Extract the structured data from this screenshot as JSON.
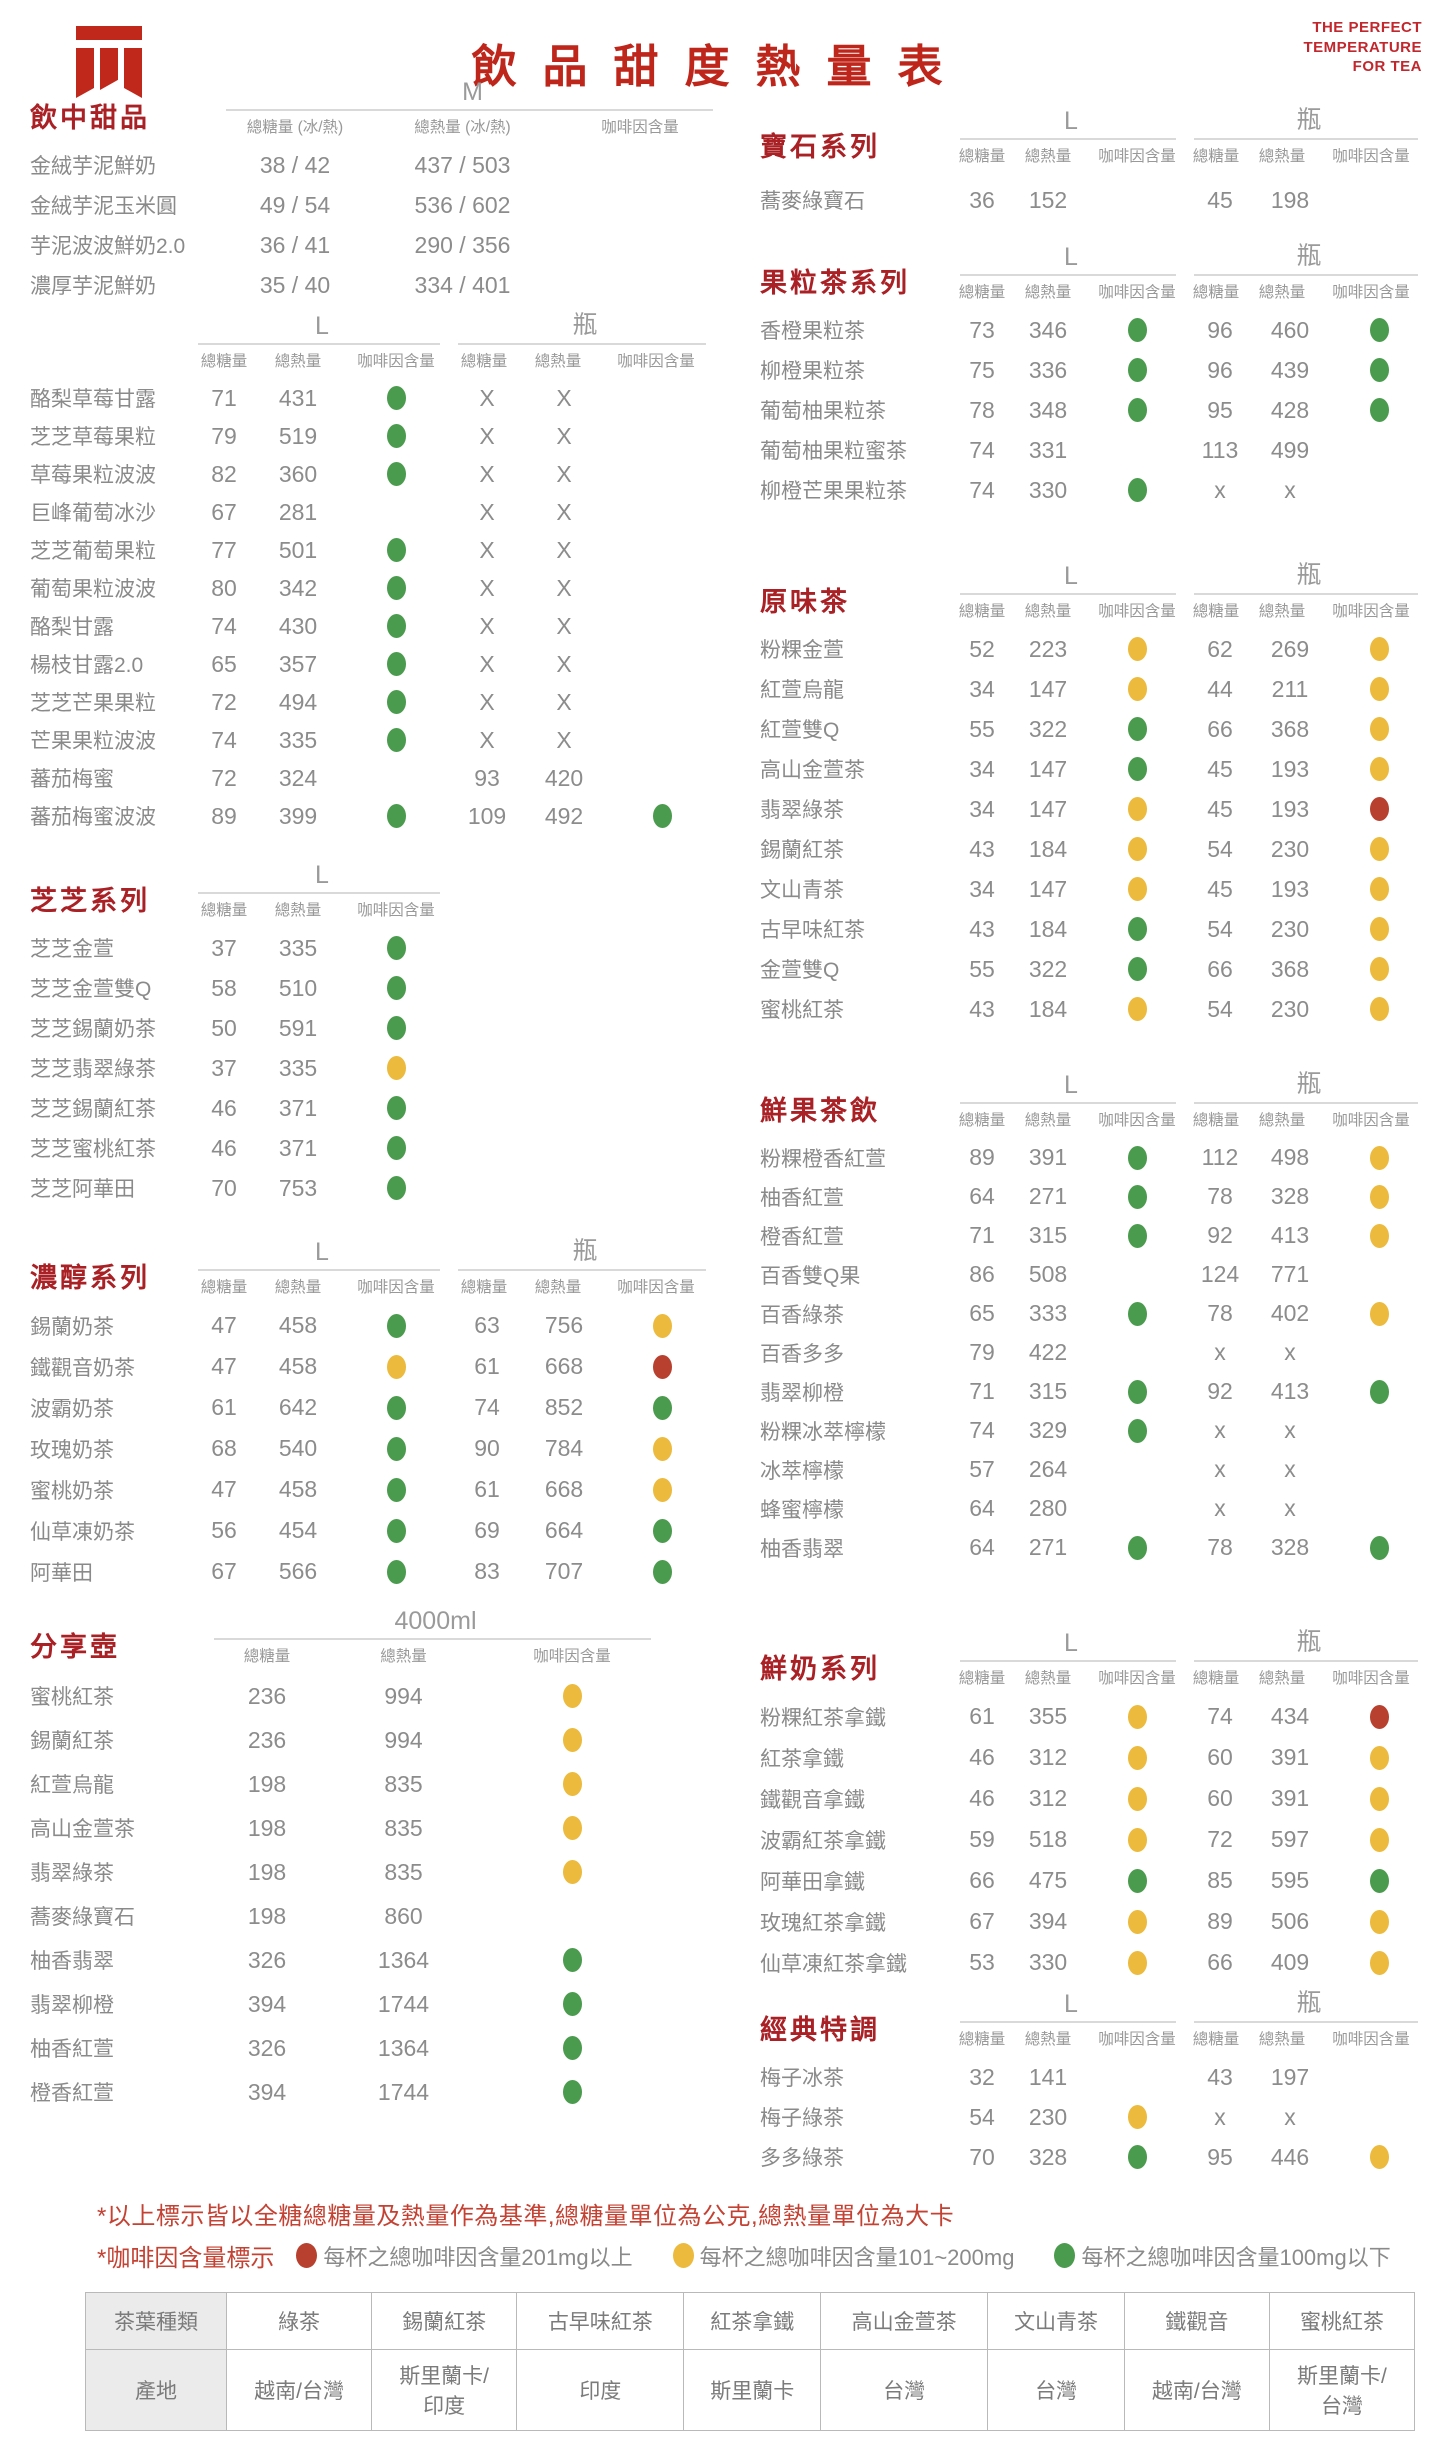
{
  "header": {
    "title": "飲品甜度熱量表",
    "tagline": [
      "THE PERFECT",
      "TEMPERATURE",
      "FOR TEA"
    ]
  },
  "colors": {
    "accent_red": "#bf261b",
    "section_red": "#a92025",
    "dot_green": "#4b9b4e",
    "dot_yellow": "#ecba3c",
    "dot_red": "#b8402e"
  },
  "column_headers": {
    "default": [
      "總糖量",
      "總熱量",
      "咖啡因含量"
    ],
    "ice_hot": [
      "總糖量 (冰/熱)",
      "總熱量 (冰/熱)",
      "咖啡因含量"
    ]
  },
  "left_sections": [
    {
      "id": "drink-desserts",
      "title": "飲中甜品",
      "type": "sec-m",
      "extra": "mt8",
      "groups": [
        "M"
      ],
      "headers": "ice_hot",
      "rows": [
        [
          "金絨芋泥鮮奶",
          "38 / 42",
          "437 / 503",
          ""
        ],
        [
          "金絨芋泥玉米圓",
          "49 / 54",
          "536 / 602",
          ""
        ],
        [
          "芋泥波波鮮奶2.0",
          "36 / 41",
          "290 / 356",
          ""
        ],
        [
          "濃厚芋泥鮮奶",
          "35 / 40",
          "334 / 401",
          ""
        ]
      ]
    },
    {
      "id": "fruit-specials",
      "title": "",
      "type": "sec-lbL fruity",
      "extra": "mt0",
      "groups": [
        "L",
        "瓶"
      ],
      "rows": [
        [
          "酪梨草莓甘露",
          "71",
          "431",
          "g",
          "X",
          "X",
          ""
        ],
        [
          "芝芝草莓果粒",
          "79",
          "519",
          "g",
          "X",
          "X",
          ""
        ],
        [
          "草莓果粒波波",
          "82",
          "360",
          "g",
          "X",
          "X",
          ""
        ],
        [
          "巨峰葡萄冰沙",
          "67",
          "281",
          "",
          "X",
          "X",
          ""
        ],
        [
          "芝芝葡萄果粒",
          "77",
          "501",
          "g",
          "X",
          "X",
          ""
        ],
        [
          "葡萄果粒波波",
          "80",
          "342",
          "g",
          "X",
          "X",
          ""
        ],
        [
          "酪梨甘露",
          "74",
          "430",
          "g",
          "X",
          "X",
          ""
        ],
        [
          "楊枝甘露2.0",
          "65",
          "357",
          "g",
          "X",
          "X",
          ""
        ],
        [
          "芝芝芒果果粒",
          "72",
          "494",
          "g",
          "X",
          "X",
          ""
        ],
        [
          "芒果果粒波波",
          "74",
          "335",
          "g",
          "X",
          "X",
          ""
        ],
        [
          "蕃茄梅蜜",
          "72",
          "324",
          "",
          "93",
          "420",
          ""
        ],
        [
          "蕃茄梅蜜波波",
          "89",
          "399",
          "g",
          "109",
          "492",
          "g"
        ]
      ]
    },
    {
      "id": "cheese-series",
      "title": "芝芝系列",
      "type": "sec-l",
      "extra": "mt26",
      "groups": [
        "L"
      ],
      "rows": [
        [
          "芝芝金萱",
          "37",
          "335",
          "g"
        ],
        [
          "芝芝金萱雙Q",
          "58",
          "510",
          "g"
        ],
        [
          "芝芝錫蘭奶茶",
          "50",
          "591",
          "g"
        ],
        [
          "芝芝翡翠綠茶",
          "37",
          "335",
          "y"
        ],
        [
          "芝芝錫蘭紅茶",
          "46",
          "371",
          "g"
        ],
        [
          "芝芝蜜桃紅茶",
          "46",
          "371",
          "g"
        ],
        [
          "芝芝阿華田",
          "70",
          "753",
          "g"
        ]
      ]
    },
    {
      "id": "rich-milk-tea",
      "title": "濃醇系列",
      "type": "sec-lbL rich",
      "extra": "mt23",
      "groups": [
        "L",
        "瓶"
      ],
      "rows": [
        [
          "錫蘭奶茶",
          "47",
          "458",
          "g",
          "63",
          "756",
          "y"
        ],
        [
          "鐵觀音奶茶",
          "47",
          "458",
          "y",
          "61",
          "668",
          "r"
        ],
        [
          "波霸奶茶",
          "61",
          "642",
          "g",
          "74",
          "852",
          "g"
        ],
        [
          "玫瑰奶茶",
          "68",
          "540",
          "g",
          "90",
          "784",
          "y"
        ],
        [
          "蜜桃奶茶",
          "47",
          "458",
          "g",
          "61",
          "668",
          "y"
        ],
        [
          "仙草凍奶茶",
          "56",
          "454",
          "g",
          "69",
          "664",
          "g"
        ],
        [
          "阿華田",
          "67",
          "566",
          "g",
          "83",
          "707",
          "g"
        ]
      ]
    },
    {
      "id": "sharing-jug",
      "title": "分享壺",
      "type": "sec-jug",
      "extra": "mt15",
      "groups": [
        "4000ml"
      ],
      "rows": [
        [
          "蜜桃紅茶",
          "236",
          "994",
          "y"
        ],
        [
          "錫蘭紅茶",
          "236",
          "994",
          "y"
        ],
        [
          "紅萱烏龍",
          "198",
          "835",
          "y"
        ],
        [
          "高山金萱茶",
          "198",
          "835",
          "y"
        ],
        [
          "翡翠綠茶",
          "198",
          "835",
          "y"
        ],
        [
          "蕎麥綠寶石",
          "198",
          "860",
          ""
        ],
        [
          "柚香翡翠",
          "326",
          "1364",
          "g"
        ],
        [
          "翡翠柳橙",
          "394",
          "1744",
          "g"
        ],
        [
          "柚香紅萱",
          "326",
          "1364",
          "g"
        ],
        [
          "橙香紅萱",
          "394",
          "1744",
          "g"
        ]
      ]
    }
  ],
  "right_sections": [
    {
      "id": "gem-series",
      "title": "寶石系列",
      "type": "sec-lbR single",
      "extra": "mt40",
      "groups": [
        "L",
        "瓶"
      ],
      "rows": [
        [
          "蕎麥綠寶石",
          "36",
          "152",
          "",
          "45",
          "198",
          ""
        ]
      ]
    },
    {
      "id": "fruit-tea-series",
      "title": "果粒茶系列",
      "type": "sec-lbR",
      "extra": "mt10",
      "groups": [
        "L",
        "瓶"
      ],
      "rows": [
        [
          "香橙果粒茶",
          "73",
          "346",
          "g",
          "96",
          "460",
          "g"
        ],
        [
          "柳橙果粒茶",
          "75",
          "336",
          "g",
          "96",
          "439",
          "g"
        ],
        [
          "葡萄柚果粒茶",
          "78",
          "348",
          "g",
          "95",
          "428",
          "g"
        ],
        [
          "葡萄柚果粒蜜茶",
          "74",
          "331",
          "",
          "113",
          "499",
          ""
        ],
        [
          "柳橙芒果果粒茶",
          "74",
          "330",
          "g",
          "x",
          "x",
          ""
        ]
      ]
    },
    {
      "id": "original-tea",
      "title": "原味茶",
      "type": "sec-lbR",
      "extra": "mt45",
      "groups": [
        "L",
        "瓶"
      ],
      "rows": [
        [
          "粉粿金萱",
          "52",
          "223",
          "y",
          "62",
          "269",
          "y"
        ],
        [
          "紅萱烏龍",
          "34",
          "147",
          "y",
          "44",
          "211",
          "y"
        ],
        [
          "紅萱雙Q",
          "55",
          "322",
          "g",
          "66",
          "368",
          "y"
        ],
        [
          "高山金萱茶",
          "34",
          "147",
          "g",
          "45",
          "193",
          "y"
        ],
        [
          "翡翠綠茶",
          "34",
          "147",
          "y",
          "45",
          "193",
          "r"
        ],
        [
          "錫蘭紅茶",
          "43",
          "184",
          "y",
          "54",
          "230",
          "y"
        ],
        [
          "文山青茶",
          "34",
          "147",
          "y",
          "45",
          "193",
          "y"
        ],
        [
          "古早味紅茶",
          "43",
          "184",
          "g",
          "54",
          "230",
          "y"
        ],
        [
          "金萱雙Q",
          "55",
          "322",
          "g",
          "66",
          "368",
          "y"
        ],
        [
          "蜜桃紅茶",
          "43",
          "184",
          "y",
          "54",
          "230",
          "y"
        ]
      ]
    },
    {
      "id": "fresh-fruit-tea",
      "title": "鮮果茶飲",
      "type": "sec-lbR fresh",
      "extra": "mt35",
      "groups": [
        "L",
        "瓶"
      ],
      "rows": [
        [
          "粉粿橙香紅萱",
          "89",
          "391",
          "g",
          "112",
          "498",
          "y"
        ],
        [
          "柚香紅萱",
          "64",
          "271",
          "g",
          "78",
          "328",
          "y"
        ],
        [
          "橙香紅萱",
          "71",
          "315",
          "g",
          "92",
          "413",
          "y"
        ],
        [
          "百香雙Q果",
          "86",
          "508",
          "",
          "124",
          "771",
          ""
        ],
        [
          "百香綠茶",
          "65",
          "333",
          "g",
          "78",
          "402",
          "y"
        ],
        [
          "百香多多",
          "79",
          "422",
          "",
          "x",
          "x",
          ""
        ],
        [
          "翡翠柳橙",
          "71",
          "315",
          "g",
          "92",
          "413",
          "g"
        ],
        [
          "粉粿冰萃檸檬",
          "74",
          "329",
          "g",
          "x",
          "x",
          ""
        ],
        [
          "冰萃檸檬",
          "57",
          "264",
          "",
          "x",
          "x",
          ""
        ],
        [
          "蜂蜜檸檬",
          "64",
          "280",
          "",
          "x",
          "x",
          ""
        ],
        [
          "柚香翡翠",
          "64",
          "271",
          "g",
          "78",
          "328",
          "g"
        ]
      ]
    },
    {
      "id": "fresh-milk-series",
      "title": "鮮奶系列",
      "type": "sec-lbR milk",
      "extra": "mt55",
      "groups": [
        "L",
        "瓶"
      ],
      "rows": [
        [
          "粉粿紅茶拿鐵",
          "61",
          "355",
          "y",
          "74",
          "434",
          "r"
        ],
        [
          "紅茶拿鐵",
          "46",
          "312",
          "y",
          "60",
          "391",
          "y"
        ],
        [
          "鐵觀音拿鐵",
          "46",
          "312",
          "y",
          "60",
          "391",
          "y"
        ],
        [
          "波霸紅茶拿鐵",
          "59",
          "518",
          "y",
          "72",
          "597",
          "y"
        ],
        [
          "阿華田拿鐵",
          "66",
          "475",
          "g",
          "85",
          "595",
          "g"
        ],
        [
          "玫瑰紅茶拿鐵",
          "67",
          "394",
          "y",
          "89",
          "506",
          "y"
        ],
        [
          "仙草凍紅茶拿鐵",
          "53",
          "330",
          "y",
          "66",
          "409",
          "y"
        ]
      ]
    },
    {
      "id": "classic-special",
      "title": "經典特調",
      "type": "sec-lbR",
      "extra": "mt0",
      "groups": [
        "L",
        "瓶"
      ],
      "rows": [
        [
          "梅子冰茶",
          "32",
          "141",
          "",
          "43",
          "197",
          ""
        ],
        [
          "梅子綠茶",
          "54",
          "230",
          "y",
          "x",
          "x",
          ""
        ],
        [
          "多多綠茶",
          "70",
          "328",
          "g",
          "95",
          "446",
          "y"
        ]
      ]
    }
  ],
  "footnotes": {
    "note1": "*以上標示皆以全糖總糖量及熱量作為基準,總糖量單位為公克,總熱量單位為大卡",
    "legend_label": "*咖啡因含量標示",
    "legend": [
      {
        "color": "r",
        "text": "每杯之總咖啡因含量201mg以上"
      },
      {
        "color": "y",
        "text": "每杯之總咖啡因含量101~200mg"
      },
      {
        "color": "g",
        "text": "每杯之總咖啡因含量100mg以下"
      }
    ]
  },
  "origin_table": {
    "row1_label": "茶葉種類",
    "row1": [
      "綠茶",
      "錫蘭紅茶",
      "古早味紅茶",
      "紅茶拿鐵",
      "高山金萱茶",
      "文山青茶",
      "鐵觀音",
      "蜜桃紅茶"
    ],
    "row2_label": "產地",
    "row2": [
      "越南/台灣",
      "斯里蘭卡/\n印度",
      "印度",
      "斯里蘭卡",
      "台灣",
      "台灣",
      "越南/台灣",
      "斯里蘭卡/\n台灣"
    ]
  }
}
